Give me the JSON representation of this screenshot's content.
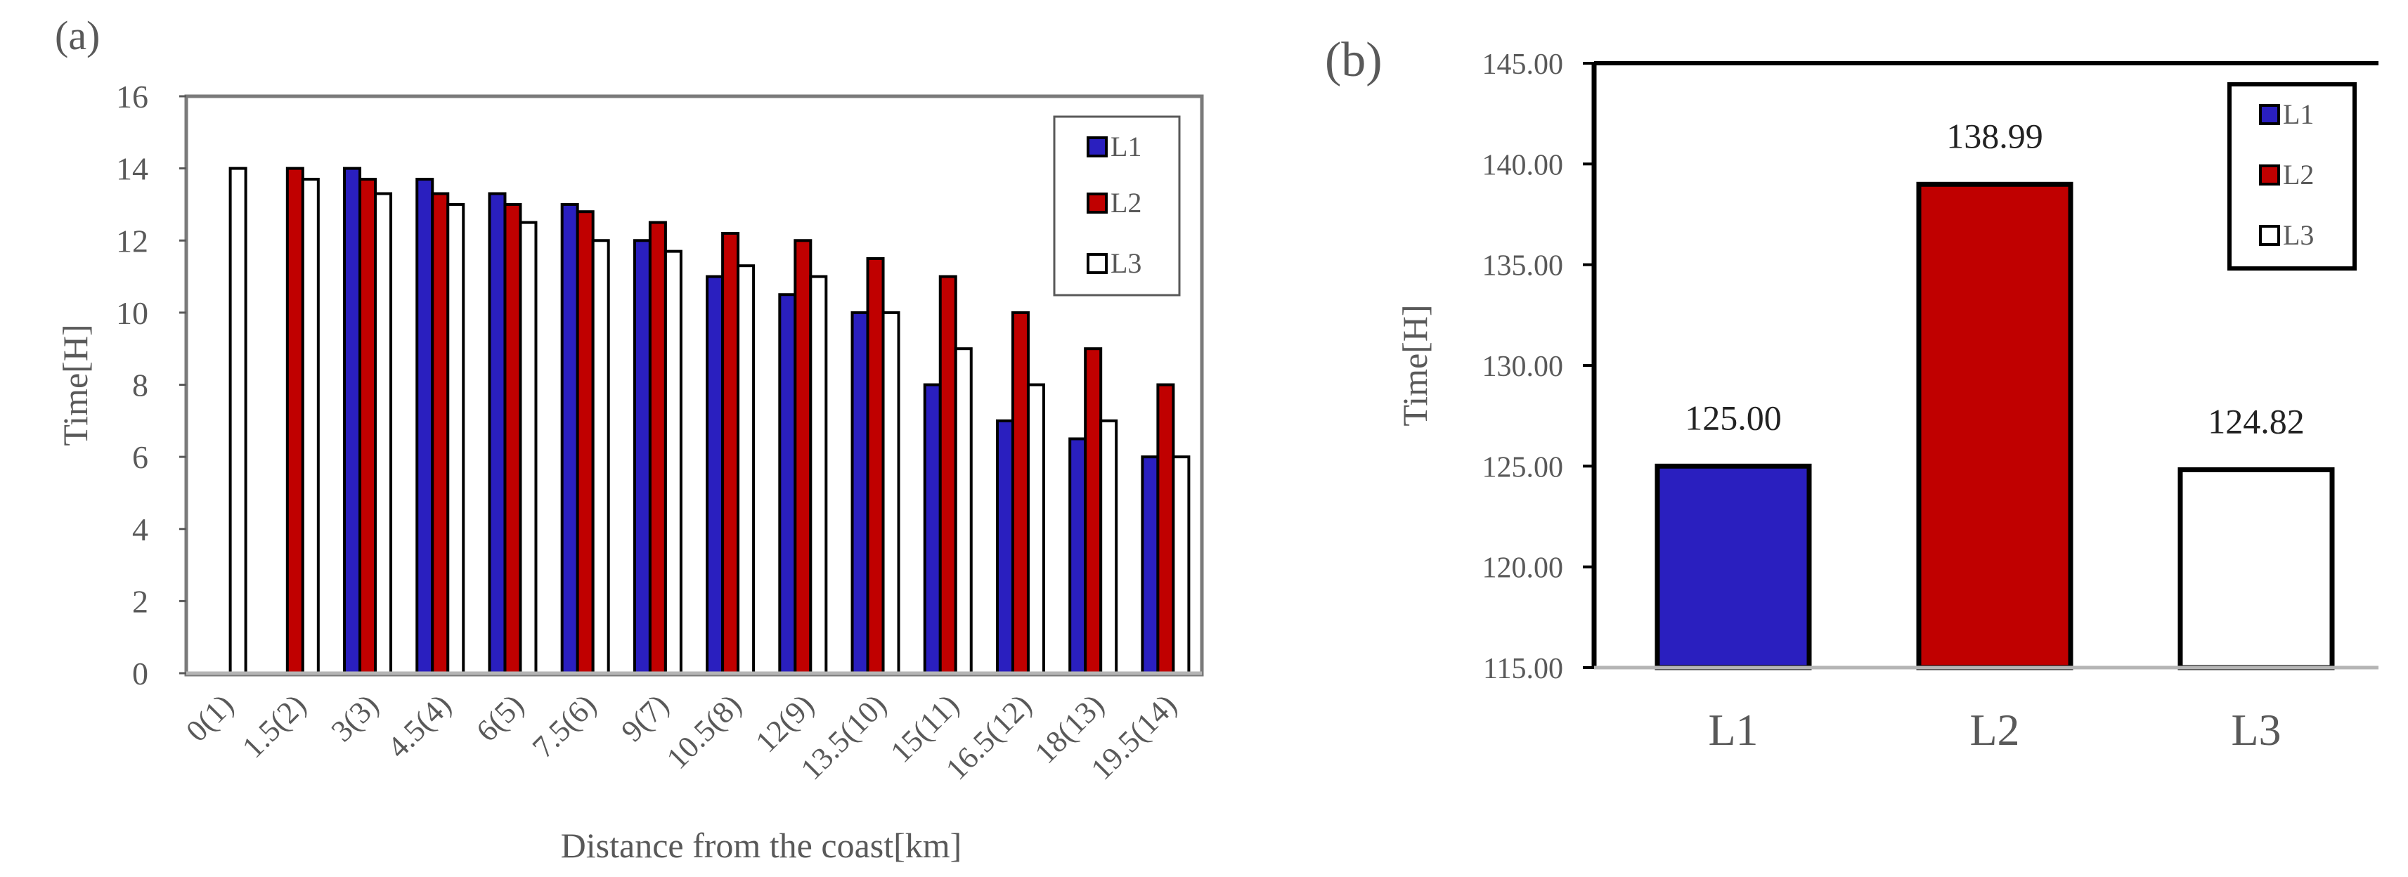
{
  "colors": {
    "L1": "#2a1fbf",
    "L2": "#c00000",
    "L3": "#ffffff",
    "text": "#595959",
    "axis": "#595959"
  },
  "chart_data": [
    {
      "panel_label": "(a)",
      "type": "bar",
      "title": "",
      "xlabel": "Distance from the coast[km]",
      "ylabel": "Time[H]",
      "ylim": [
        0,
        16
      ],
      "yticks": [
        "0",
        "2",
        "4",
        "6",
        "8",
        "10",
        "12",
        "14",
        "16"
      ],
      "categories": [
        "0(1)",
        "1.5(2)",
        "3(3)",
        "4.5(4)",
        "6(5)",
        "7.5(6)",
        "9(7)",
        "10.5(8)",
        "12(9)",
        "13.5(10)",
        "15(11)",
        "16.5(12)",
        "18(13)",
        "19.5(14)"
      ],
      "series": [
        {
          "name": "L1",
          "values": [
            null,
            null,
            14,
            13.7,
            13.3,
            13,
            12,
            11,
            10.5,
            10,
            8,
            7,
            6.5,
            6
          ]
        },
        {
          "name": "L2",
          "values": [
            null,
            14,
            13.7,
            13.3,
            13,
            12.8,
            12.5,
            12.2,
            12,
            11.5,
            11,
            10,
            9,
            8
          ]
        },
        {
          "name": "L3",
          "values": [
            14,
            13.7,
            13.3,
            13,
            12.5,
            12,
            11.7,
            11.3,
            11,
            10,
            9,
            8,
            7,
            6
          ]
        }
      ],
      "legend": [
        "L1",
        "L2",
        "L3"
      ],
      "legend_position": "top-right"
    },
    {
      "panel_label": "(b)",
      "type": "bar",
      "title": "",
      "xlabel": "",
      "ylabel": "Time[H]",
      "ylim": [
        115,
        145
      ],
      "yticks": [
        "115.00",
        "120.00",
        "125.00",
        "130.00",
        "135.00",
        "140.00",
        "145.00"
      ],
      "categories": [
        "L1",
        "L2",
        "L3"
      ],
      "values": [
        125.0,
        138.99,
        124.82
      ],
      "data_labels": [
        "125.00",
        "138.99",
        "124.82"
      ],
      "legend": [
        "L1",
        "L2",
        "L3"
      ],
      "legend_position": "top-right"
    }
  ]
}
